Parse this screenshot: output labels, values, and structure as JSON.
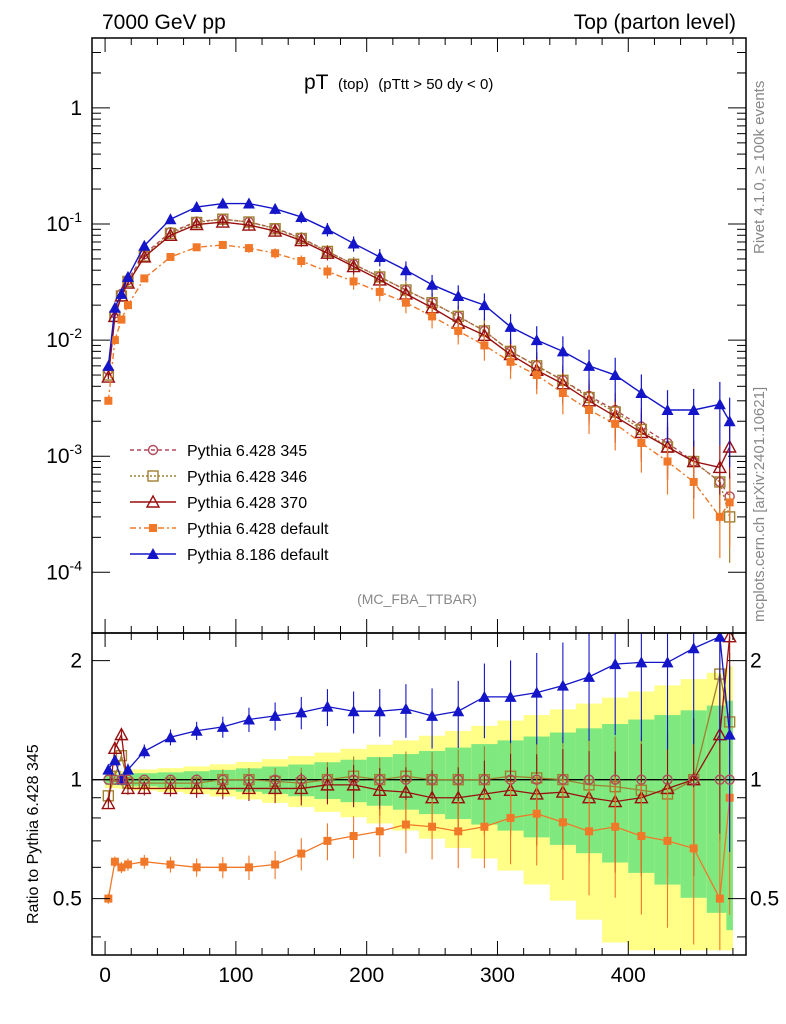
{
  "header": {
    "left": "7000 GeV pp",
    "right": "Top (parton level)",
    "side_top": "Rivet 4.1.0, ≥ 100k events",
    "side_bottom": "mcplots.cern.ch [arXiv:2401.10621]"
  },
  "chart_data": {
    "type": "line",
    "title_main": "pT",
    "title_sub1": "(top)",
    "title_sub2": "(pTtt > 50 dy < 0)",
    "watermark": "(MC_FBA_TTBAR)",
    "ylabel_ratio": "Ratio to Pythia 6.428 345",
    "xlim": [
      -10,
      490
    ],
    "ylim_main": [
      3e-05,
      4
    ],
    "ylim_ratio": [
      0.36,
      2.35
    ],
    "x_ticks": [
      0,
      100,
      200,
      300,
      400
    ],
    "x_tick_labels": [
      "0",
      "100",
      "200",
      "300",
      "400"
    ],
    "y_main_ticks": [
      "1",
      "10^-1",
      "10^-2",
      "10^-3",
      "10^-4"
    ],
    "y_ratio_ticks": [
      "0.5",
      "1",
      "2"
    ],
    "series": [
      {
        "name": "Pythia 6.428 345",
        "color": "#b04a5a",
        "marker": "open-circle",
        "x": [
          2.5,
          7.5,
          12.5,
          17.5,
          30,
          50,
          70,
          90,
          110,
          130,
          150,
          170,
          190,
          210,
          230,
          250,
          270,
          290,
          310,
          330,
          350,
          370,
          390,
          410,
          430,
          450,
          470,
          477.5
        ],
        "values": [
          0.0055,
          0.017,
          0.025,
          0.033,
          0.055,
          0.085,
          0.105,
          0.11,
          0.104,
          0.092,
          0.076,
          0.058,
          0.045,
          0.035,
          0.027,
          0.021,
          0.016,
          0.012,
          0.008,
          0.006,
          0.0045,
          0.0033,
          0.0025,
          0.0018,
          0.0013,
          0.0009,
          0.0006,
          0.00045
        ]
      },
      {
        "name": "Pythia 6.428 346",
        "color": "#a08030",
        "marker": "open-square",
        "x": [
          2.5,
          7.5,
          12.5,
          17.5,
          30,
          50,
          70,
          90,
          110,
          130,
          150,
          170,
          190,
          210,
          230,
          250,
          270,
          290,
          310,
          330,
          350,
          370,
          390,
          410,
          430,
          450,
          470,
          477.5
        ],
        "values": [
          0.005,
          0.016,
          0.024,
          0.032,
          0.053,
          0.083,
          0.103,
          0.11,
          0.104,
          0.091,
          0.075,
          0.058,
          0.045,
          0.035,
          0.027,
          0.021,
          0.016,
          0.012,
          0.008,
          0.006,
          0.0045,
          0.0032,
          0.0024,
          0.0017,
          0.0012,
          0.0009,
          0.0006,
          0.0003
        ]
      },
      {
        "name": "Pythia 6.428 370",
        "color": "#990f0f",
        "marker": "open-triangle",
        "x": [
          2.5,
          7.5,
          12.5,
          17.5,
          30,
          50,
          70,
          90,
          110,
          130,
          150,
          170,
          190,
          210,
          230,
          250,
          270,
          290,
          310,
          330,
          350,
          370,
          390,
          410,
          430,
          450,
          470,
          477.5
        ],
        "values": [
          0.0048,
          0.016,
          0.024,
          0.031,
          0.052,
          0.08,
          0.099,
          0.104,
          0.098,
          0.087,
          0.072,
          0.056,
          0.043,
          0.033,
          0.025,
          0.019,
          0.014,
          0.011,
          0.0075,
          0.0055,
          0.0042,
          0.003,
          0.0022,
          0.0016,
          0.0012,
          0.0009,
          0.0008,
          0.0012
        ]
      },
      {
        "name": "Pythia 6.428 default",
        "color": "#f07828",
        "marker": "filled-square",
        "x": [
          2.5,
          7.5,
          12.5,
          17.5,
          30,
          50,
          70,
          90,
          110,
          130,
          150,
          170,
          190,
          210,
          230,
          250,
          270,
          290,
          310,
          330,
          350,
          370,
          390,
          410,
          430,
          450,
          470,
          477.5
        ],
        "values": [
          0.003,
          0.01,
          0.015,
          0.02,
          0.034,
          0.052,
          0.063,
          0.066,
          0.062,
          0.056,
          0.048,
          0.039,
          0.032,
          0.026,
          0.021,
          0.016,
          0.012,
          0.009,
          0.0065,
          0.005,
          0.0035,
          0.0025,
          0.0019,
          0.0013,
          0.0009,
          0.0006,
          0.0003,
          0.0004
        ]
      },
      {
        "name": "Pythia 8.186 default",
        "color": "#1414c8",
        "marker": "filled-triangle",
        "x": [
          2.5,
          7.5,
          12.5,
          17.5,
          30,
          50,
          70,
          90,
          110,
          130,
          150,
          170,
          190,
          210,
          230,
          250,
          270,
          290,
          310,
          330,
          350,
          370,
          390,
          410,
          430,
          450,
          470,
          477.5
        ],
        "values": [
          0.006,
          0.019,
          0.025,
          0.035,
          0.065,
          0.11,
          0.14,
          0.15,
          0.15,
          0.135,
          0.115,
          0.09,
          0.068,
          0.052,
          0.04,
          0.03,
          0.024,
          0.02,
          0.013,
          0.01,
          0.008,
          0.006,
          0.005,
          0.0035,
          0.0025,
          0.0025,
          0.0028,
          0.002
        ]
      }
    ],
    "ratio_series": [
      {
        "name": "Pythia 6.428 346",
        "x": [
          2.5,
          7.5,
          12.5,
          17.5,
          30,
          50,
          70,
          90,
          110,
          130,
          150,
          170,
          190,
          210,
          230,
          250,
          270,
          290,
          310,
          330,
          350,
          370,
          390,
          410,
          430,
          450,
          470,
          477.5
        ],
        "values": [
          0.91,
          1.02,
          1.15,
          0.98,
          0.98,
          0.98,
          0.98,
          1.0,
          1.0,
          0.99,
          0.98,
          1.0,
          1.02,
          1.0,
          1.02,
          1.0,
          1.0,
          1.0,
          1.02,
          1.01,
          1.0,
          0.97,
          0.96,
          0.94,
          0.92,
          1.0,
          1.85,
          1.4
        ]
      },
      {
        "name": "Pythia 6.428 370",
        "x": [
          2.5,
          7.5,
          12.5,
          17.5,
          30,
          50,
          70,
          90,
          110,
          130,
          150,
          170,
          190,
          210,
          230,
          250,
          270,
          290,
          310,
          330,
          350,
          370,
          390,
          410,
          430,
          450,
          470,
          477.5
        ],
        "values": [
          0.87,
          1.2,
          1.3,
          0.95,
          0.95,
          0.95,
          0.95,
          0.95,
          0.95,
          0.95,
          0.95,
          0.97,
          0.97,
          0.94,
          0.93,
          0.9,
          0.9,
          0.92,
          0.94,
          0.92,
          0.93,
          0.9,
          0.88,
          0.9,
          0.95,
          1.0,
          1.3,
          2.3
        ]
      },
      {
        "name": "Pythia 6.428 default",
        "x": [
          2.5,
          7.5,
          12.5,
          17.5,
          30,
          50,
          70,
          90,
          110,
          130,
          150,
          170,
          190,
          210,
          230,
          250,
          270,
          290,
          310,
          330,
          350,
          370,
          390,
          410,
          430,
          450,
          470,
          477.5
        ],
        "values": [
          0.5,
          0.62,
          0.6,
          0.61,
          0.62,
          0.61,
          0.6,
          0.6,
          0.6,
          0.61,
          0.65,
          0.7,
          0.72,
          0.74,
          0.77,
          0.76,
          0.74,
          0.76,
          0.8,
          0.82,
          0.78,
          0.74,
          0.76,
          0.72,
          0.7,
          0.67,
          0.5,
          0.9
        ]
      },
      {
        "name": "Pythia 8.186 default",
        "x": [
          2.5,
          7.5,
          12.5,
          17.5,
          30,
          50,
          70,
          90,
          110,
          130,
          150,
          170,
          190,
          210,
          230,
          250,
          270,
          290,
          310,
          330,
          350,
          370,
          390,
          410,
          430,
          450,
          470,
          477.5
        ],
        "values": [
          1.06,
          1.12,
          1.0,
          1.06,
          1.18,
          1.28,
          1.33,
          1.36,
          1.42,
          1.45,
          1.48,
          1.53,
          1.49,
          1.49,
          1.51,
          1.45,
          1.49,
          1.62,
          1.62,
          1.66,
          1.73,
          1.82,
          1.96,
          1.98,
          1.98,
          2.15,
          2.3,
          1.3
        ]
      }
    ],
    "reference": {
      "name": "Pythia 6.428 345",
      "value": 1.0,
      "band_inner_color": "#7fe87f",
      "band_outer_color": "#ffff88"
    }
  }
}
